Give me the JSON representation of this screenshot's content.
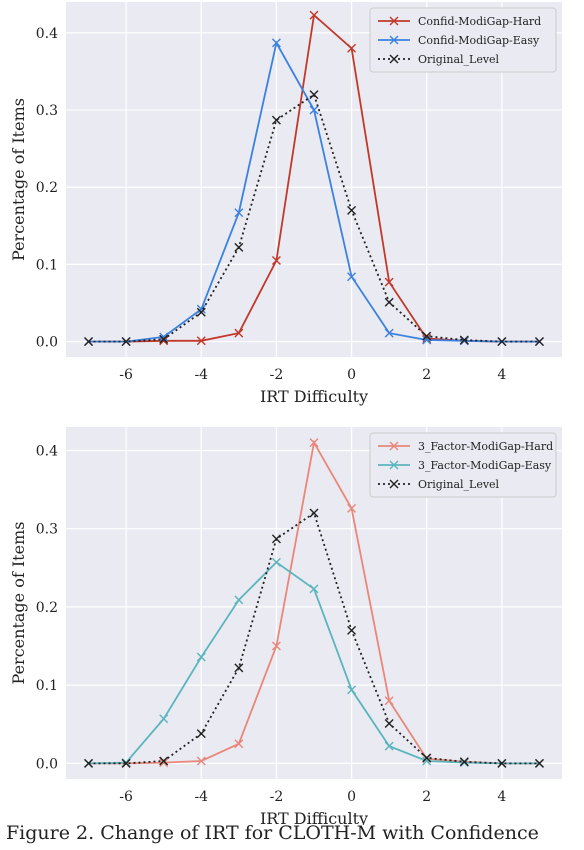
{
  "chart_data": [
    {
      "type": "line",
      "xlabel": "IRT Difficulty",
      "ylabel": "Percentage of Items",
      "xlim": [
        -7.6,
        5.6
      ],
      "ylim": [
        -0.02,
        0.44
      ],
      "xticks": [
        -6,
        -4,
        -2,
        0,
        2,
        4
      ],
      "yticks": [
        0.0,
        0.1,
        0.2,
        0.3,
        0.4
      ],
      "ytick_labels": [
        "0.0",
        "0.1",
        "0.2",
        "0.3",
        "0.4"
      ],
      "grid": true,
      "legend_position": "top-right",
      "x": [
        -7,
        -6,
        -5,
        -4,
        -3,
        -2,
        -1,
        0,
        1,
        2,
        3,
        4,
        5
      ],
      "series": [
        {
          "name": "Confid-ModiGap-Hard",
          "color": "#c0392b",
          "style": "solid",
          "values": [
            0.0,
            0.0,
            0.001,
            0.001,
            0.011,
            0.105,
            0.423,
            0.38,
            0.077,
            0.004,
            0.001,
            0.0,
            0.0
          ]
        },
        {
          "name": "Confid-ModiGap-Easy",
          "color": "#3b82e0",
          "style": "solid",
          "values": [
            0.0,
            0.0,
            0.006,
            0.042,
            0.167,
            0.387,
            0.3,
            0.084,
            0.011,
            0.002,
            0.001,
            0.0,
            0.0
          ]
        },
        {
          "name": "Original_Level",
          "color": "#222222",
          "style": "dotted",
          "values": [
            0.0,
            0.0,
            0.003,
            0.038,
            0.122,
            0.287,
            0.32,
            0.17,
            0.051,
            0.007,
            0.002,
            0.0,
            0.0
          ]
        }
      ]
    },
    {
      "type": "line",
      "xlabel": "IRT Difficulty",
      "ylabel": "Percentage of Items",
      "xlim": [
        -7.6,
        5.6
      ],
      "ylim": [
        -0.02,
        0.43
      ],
      "xticks": [
        -6,
        -4,
        -2,
        0,
        2,
        4
      ],
      "yticks": [
        0.0,
        0.1,
        0.2,
        0.3,
        0.4
      ],
      "ytick_labels": [
        "0.0",
        "0.1",
        "0.2",
        "0.3",
        "0.4"
      ],
      "grid": true,
      "legend_position": "top-right",
      "x": [
        -7,
        -6,
        -5,
        -4,
        -3,
        -2,
        -1,
        0,
        1,
        2,
        3,
        4,
        5
      ],
      "series": [
        {
          "name": "3_Factor-ModiGap-Hard",
          "color": "#e8877a",
          "style": "solid",
          "values": [
            0.0,
            0.0,
            0.001,
            0.003,
            0.025,
            0.15,
            0.41,
            0.326,
            0.08,
            0.006,
            0.002,
            0.0,
            0.0
          ]
        },
        {
          "name": "3_Factor-ModiGap-Easy",
          "color": "#5bb5bd",
          "style": "solid",
          "values": [
            0.0,
            0.001,
            0.057,
            0.136,
            0.209,
            0.257,
            0.223,
            0.094,
            0.022,
            0.003,
            0.001,
            0.0,
            0.0
          ]
        },
        {
          "name": "Original_Level",
          "color": "#222222",
          "style": "dotted",
          "values": [
            0.0,
            0.0,
            0.003,
            0.038,
            0.122,
            0.287,
            0.32,
            0.17,
            0.051,
            0.007,
            0.002,
            0.0,
            0.0
          ]
        }
      ]
    }
  ],
  "caption": "Figure 2. Change of IRT for CLOTH-M with Confidence"
}
